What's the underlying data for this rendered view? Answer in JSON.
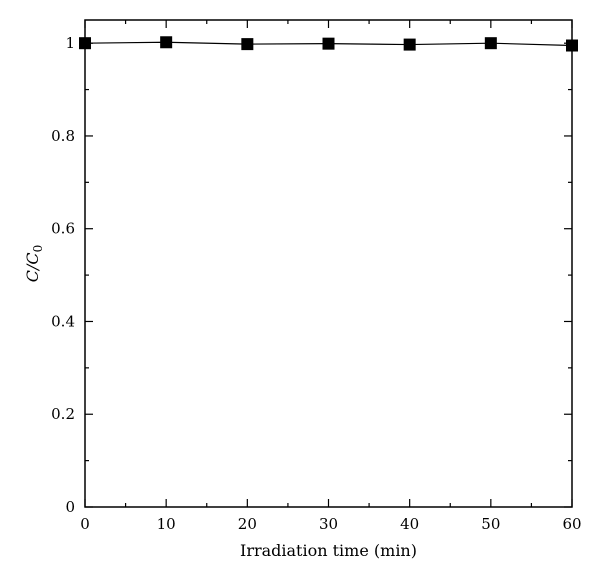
{
  "chart_data": {
    "type": "line",
    "title": "",
    "xlabel": "Irradiation time (min)",
    "ylabel_main": "C/C",
    "ylabel_sub": "0",
    "xlim": [
      0,
      60
    ],
    "ylim": [
      0,
      1.05
    ],
    "x_ticks": [
      0,
      10,
      20,
      30,
      40,
      50,
      60
    ],
    "x_tick_labels": [
      "0",
      "10",
      "20",
      "30",
      "40",
      "50",
      "60"
    ],
    "y_ticks": [
      0,
      0.2,
      0.4,
      0.6,
      0.8,
      1
    ],
    "y_tick_labels": [
      "0",
      "0.2",
      "0.4",
      "0.6",
      "0.8",
      "1"
    ],
    "grid": false,
    "series": [
      {
        "marker": "square",
        "color": "#000000",
        "x": [
          0,
          10,
          20,
          30,
          40,
          50,
          60
        ],
        "y": [
          1.0,
          1.002,
          0.998,
          0.999,
          0.997,
          1.0,
          0.995
        ]
      }
    ]
  }
}
